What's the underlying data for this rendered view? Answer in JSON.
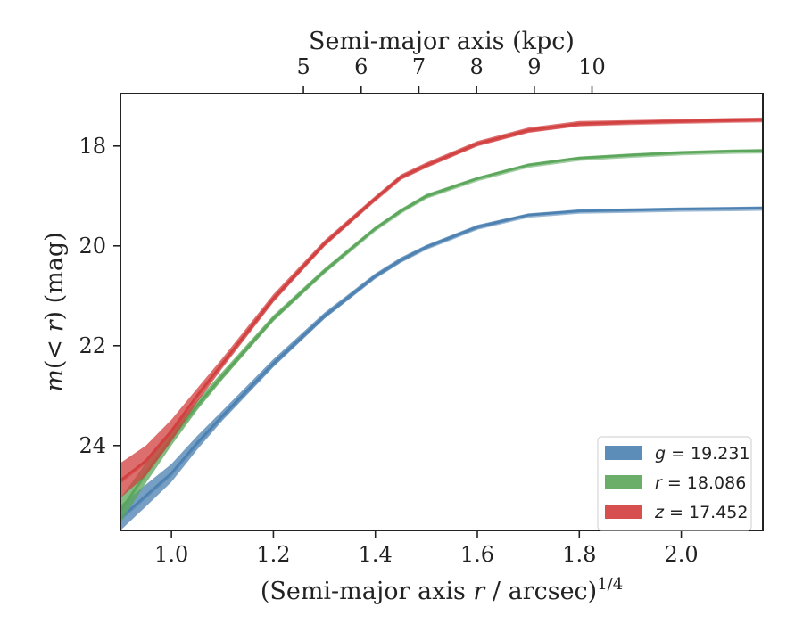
{
  "chart_data": {
    "type": "line",
    "top_axis": {
      "label": "Semi-major axis (kpc)",
      "ticks": [
        5,
        6,
        7,
        8,
        9,
        10
      ],
      "tick_labels": [
        "5",
        "6",
        "7",
        "8",
        "9",
        "10"
      ]
    },
    "xlabel": "(Semi-major axis r / arcsec)^1/4",
    "ylabel": "m(< r) (mag)",
    "xlim": [
      0.9,
      2.16
    ],
    "ylim": [
      25.7,
      16.95
    ],
    "y_inverted": true,
    "x_ticks": [
      1.0,
      1.2,
      1.4,
      1.6,
      1.8,
      2.0
    ],
    "x_tick_labels": [
      "1.0",
      "1.2",
      "1.4",
      "1.6",
      "1.8",
      "2.0"
    ],
    "y_ticks": [
      18,
      20,
      22,
      24
    ],
    "y_tick_labels": [
      "18",
      "20",
      "22",
      "24"
    ],
    "grid": false,
    "legend_position": "bottom-right",
    "series": [
      {
        "name": "g = 19.231",
        "band": "g",
        "mag": "19.231",
        "color": "#4a7fb0",
        "x": [
          0.9,
          0.95,
          1.0,
          1.05,
          1.1,
          1.2,
          1.3,
          1.4,
          1.45,
          1.5,
          1.6,
          1.7,
          1.8,
          1.9,
          2.0,
          2.1,
          2.16
        ],
        "y": [
          25.45,
          25.0,
          24.55,
          23.95,
          23.4,
          22.35,
          21.4,
          20.6,
          20.28,
          20.02,
          19.62,
          19.38,
          19.3,
          19.28,
          19.26,
          19.25,
          19.24
        ],
        "spread": [
          0.25,
          0.22,
          0.18,
          0.14,
          0.1,
          0.08,
          0.06,
          0.05,
          0.05,
          0.04,
          0.04,
          0.03,
          0.03,
          0.03,
          0.03,
          0.03,
          0.03
        ]
      },
      {
        "name": "r = 18.086",
        "band": "r",
        "mag": "18.086",
        "color": "#5aa55a",
        "x": [
          0.9,
          0.95,
          1.0,
          1.05,
          1.1,
          1.2,
          1.3,
          1.4,
          1.45,
          1.5,
          1.6,
          1.7,
          1.8,
          1.9,
          2.0,
          2.1,
          2.16
        ],
        "y": [
          25.3,
          24.55,
          23.85,
          23.2,
          22.6,
          21.45,
          20.5,
          19.65,
          19.3,
          19.0,
          18.65,
          18.38,
          18.24,
          18.18,
          18.13,
          18.1,
          18.09
        ],
        "spread": [
          0.25,
          0.2,
          0.15,
          0.1,
          0.08,
          0.06,
          0.05,
          0.04,
          0.04,
          0.04,
          0.03,
          0.03,
          0.03,
          0.03,
          0.03,
          0.03,
          0.03
        ]
      },
      {
        "name": "z = 17.452",
        "band": "z",
        "mag": "17.452",
        "color": "#d13d3d",
        "x": [
          0.9,
          0.95,
          1.0,
          1.05,
          1.1,
          1.2,
          1.3,
          1.4,
          1.45,
          1.5,
          1.6,
          1.7,
          1.8,
          1.9,
          2.0,
          2.1,
          2.16
        ],
        "y": [
          24.7,
          24.3,
          23.7,
          23.0,
          22.35,
          21.05,
          19.95,
          19.05,
          18.62,
          18.38,
          17.95,
          17.68,
          17.55,
          17.52,
          17.5,
          17.48,
          17.47
        ],
        "spread": [
          0.35,
          0.3,
          0.22,
          0.14,
          0.1,
          0.08,
          0.06,
          0.05,
          0.05,
          0.05,
          0.05,
          0.05,
          0.05,
          0.04,
          0.04,
          0.04,
          0.04
        ]
      }
    ]
  }
}
